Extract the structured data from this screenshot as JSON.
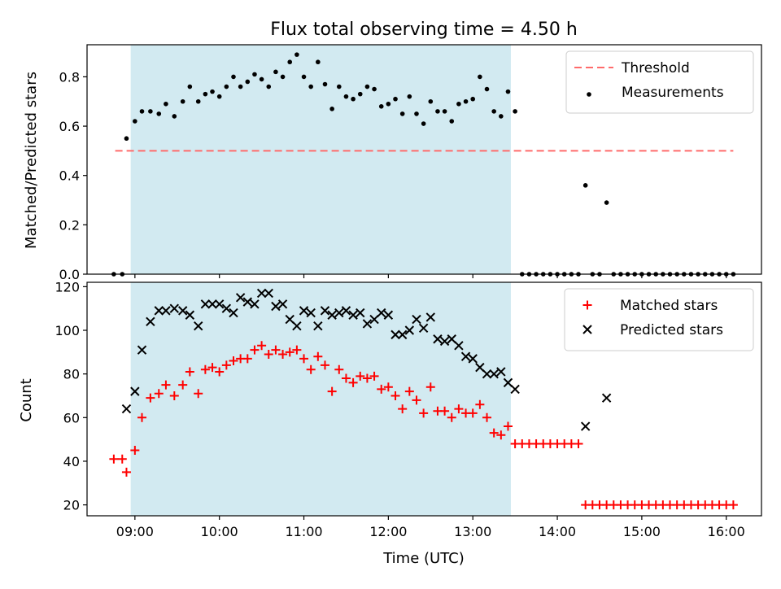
{
  "chart_data": [
    {
      "type": "scatter",
      "title": "Flux total observing time = 4.50 h",
      "xlabel": "",
      "ylabel": "Matched/Predicted stars",
      "xlim": [
        "08:26",
        "16:25"
      ],
      "ylim": [
        0,
        0.93
      ],
      "y_ticks": [
        "0.0",
        "0.2",
        "0.4",
        "0.6",
        "0.8"
      ],
      "shaded_region": {
        "from": "08:57",
        "to": "13:27",
        "color": "#add8e6"
      },
      "legend_position": "top-right",
      "threshold": {
        "name": "Threshold",
        "value": 0.5,
        "x_from": "08:46",
        "x_to": "16:05",
        "color": "#ff6b6b",
        "style": "dashed"
      },
      "series": [
        {
          "name": "Measurements",
          "color": "#000000",
          "marker": "dot",
          "points": [
            [
              "08:45",
              0.0
            ],
            [
              "08:51",
              0.0
            ],
            [
              "08:54",
              0.55
            ],
            [
              "09:00",
              0.62
            ],
            [
              "09:05",
              0.66
            ],
            [
              "09:11",
              0.66
            ],
            [
              "09:17",
              0.65
            ],
            [
              "09:22",
              0.69
            ],
            [
              "09:28",
              0.64
            ],
            [
              "09:34",
              0.7
            ],
            [
              "09:39",
              0.76
            ],
            [
              "09:45",
              0.7
            ],
            [
              "09:50",
              0.73
            ],
            [
              "09:55",
              0.74
            ],
            [
              "10:00",
              0.72
            ],
            [
              "10:05",
              0.76
            ],
            [
              "10:10",
              0.8
            ],
            [
              "10:15",
              0.76
            ],
            [
              "10:20",
              0.78
            ],
            [
              "10:25",
              0.81
            ],
            [
              "10:30",
              0.79
            ],
            [
              "10:35",
              0.76
            ],
            [
              "10:40",
              0.82
            ],
            [
              "10:45",
              0.8
            ],
            [
              "10:50",
              0.86
            ],
            [
              "10:55",
              0.89
            ],
            [
              "11:00",
              0.8
            ],
            [
              "11:05",
              0.76
            ],
            [
              "11:10",
              0.86
            ],
            [
              "11:15",
              0.77
            ],
            [
              "11:20",
              0.67
            ],
            [
              "11:25",
              0.76
            ],
            [
              "11:30",
              0.72
            ],
            [
              "11:35",
              0.71
            ],
            [
              "11:40",
              0.73
            ],
            [
              "11:45",
              0.76
            ],
            [
              "11:50",
              0.75
            ],
            [
              "11:55",
              0.68
            ],
            [
              "12:00",
              0.69
            ],
            [
              "12:05",
              0.71
            ],
            [
              "12:10",
              0.65
            ],
            [
              "12:15",
              0.72
            ],
            [
              "12:20",
              0.65
            ],
            [
              "12:25",
              0.61
            ],
            [
              "12:30",
              0.7
            ],
            [
              "12:35",
              0.66
            ],
            [
              "12:40",
              0.66
            ],
            [
              "12:45",
              0.62
            ],
            [
              "12:50",
              0.69
            ],
            [
              "12:55",
              0.7
            ],
            [
              "13:00",
              0.71
            ],
            [
              "13:05",
              0.8
            ],
            [
              "13:10",
              0.75
            ],
            [
              "13:15",
              0.66
            ],
            [
              "13:20",
              0.64
            ],
            [
              "13:25",
              0.74
            ],
            [
              "13:30",
              0.66
            ],
            [
              "13:35",
              0.0
            ],
            [
              "13:40",
              0.0
            ],
            [
              "13:45",
              0.0
            ],
            [
              "13:50",
              0.0
            ],
            [
              "13:55",
              0.0
            ],
            [
              "14:00",
              0.0
            ],
            [
              "14:05",
              0.0
            ],
            [
              "14:10",
              0.0
            ],
            [
              "14:15",
              0.0
            ],
            [
              "14:20",
              0.36
            ],
            [
              "14:25",
              0.0
            ],
            [
              "14:30",
              0.0
            ],
            [
              "14:35",
              0.29
            ],
            [
              "14:40",
              0.0
            ],
            [
              "14:45",
              0.0
            ],
            [
              "14:50",
              0.0
            ],
            [
              "14:55",
              0.0
            ],
            [
              "15:00",
              0.0
            ],
            [
              "15:05",
              0.0
            ],
            [
              "15:10",
              0.0
            ],
            [
              "15:15",
              0.0
            ],
            [
              "15:20",
              0.0
            ],
            [
              "15:25",
              0.0
            ],
            [
              "15:30",
              0.0
            ],
            [
              "15:35",
              0.0
            ],
            [
              "15:40",
              0.0
            ],
            [
              "15:45",
              0.0
            ],
            [
              "15:50",
              0.0
            ],
            [
              "15:55",
              0.0
            ],
            [
              "16:00",
              0.0
            ],
            [
              "16:05",
              0.0
            ]
          ]
        }
      ]
    },
    {
      "type": "scatter",
      "title": "",
      "xlabel": "Time (UTC)",
      "ylabel": "Count",
      "xlim": [
        "08:26",
        "16:25"
      ],
      "ylim": [
        15,
        122
      ],
      "x_ticks": [
        "09:00",
        "10:00",
        "11:00",
        "12:00",
        "13:00",
        "14:00",
        "15:00",
        "16:00"
      ],
      "y_ticks": [
        "20",
        "40",
        "60",
        "80",
        "100",
        "120"
      ],
      "shaded_region": {
        "from": "08:57",
        "to": "13:27",
        "color": "#add8e6"
      },
      "legend_position": "top-right",
      "series": [
        {
          "name": "Matched stars",
          "color": "#ff0000",
          "marker": "plus",
          "points": [
            [
              "08:45",
              41
            ],
            [
              "08:51",
              41
            ],
            [
              "08:54",
              35
            ],
            [
              "09:00",
              45
            ],
            [
              "09:05",
              60
            ],
            [
              "09:11",
              69
            ],
            [
              "09:17",
              71
            ],
            [
              "09:22",
              75
            ],
            [
              "09:28",
              70
            ],
            [
              "09:34",
              75
            ],
            [
              "09:39",
              81
            ],
            [
              "09:45",
              71
            ],
            [
              "09:50",
              82
            ],
            [
              "09:55",
              83
            ],
            [
              "10:00",
              81
            ],
            [
              "10:05",
              84
            ],
            [
              "10:10",
              86
            ],
            [
              "10:15",
              87
            ],
            [
              "10:20",
              87
            ],
            [
              "10:25",
              91
            ],
            [
              "10:30",
              93
            ],
            [
              "10:35",
              89
            ],
            [
              "10:40",
              91
            ],
            [
              "10:45",
              89
            ],
            [
              "10:50",
              90
            ],
            [
              "10:55",
              91
            ],
            [
              "11:00",
              87
            ],
            [
              "11:05",
              82
            ],
            [
              "11:10",
              88
            ],
            [
              "11:15",
              84
            ],
            [
              "11:20",
              72
            ],
            [
              "11:25",
              82
            ],
            [
              "11:30",
              78
            ],
            [
              "11:35",
              76
            ],
            [
              "11:40",
              79
            ],
            [
              "11:45",
              78
            ],
            [
              "11:50",
              79
            ],
            [
              "11:55",
              73
            ],
            [
              "12:00",
              74
            ],
            [
              "12:05",
              70
            ],
            [
              "12:10",
              64
            ],
            [
              "12:15",
              72
            ],
            [
              "12:20",
              68
            ],
            [
              "12:25",
              62
            ],
            [
              "12:30",
              74
            ],
            [
              "12:35",
              63
            ],
            [
              "12:40",
              63
            ],
            [
              "12:45",
              60
            ],
            [
              "12:50",
              64
            ],
            [
              "12:55",
              62
            ],
            [
              "13:00",
              62
            ],
            [
              "13:05",
              66
            ],
            [
              "13:10",
              60
            ],
            [
              "13:15",
              53
            ],
            [
              "13:20",
              52
            ],
            [
              "13:25",
              56
            ],
            [
              "13:30",
              48
            ],
            [
              "13:35",
              48
            ],
            [
              "13:40",
              48
            ],
            [
              "13:45",
              48
            ],
            [
              "13:50",
              48
            ],
            [
              "13:55",
              48
            ],
            [
              "14:00",
              48
            ],
            [
              "14:05",
              48
            ],
            [
              "14:10",
              48
            ],
            [
              "14:15",
              48
            ],
            [
              "14:20",
              20
            ],
            [
              "14:25",
              20
            ],
            [
              "14:30",
              20
            ],
            [
              "14:35",
              20
            ],
            [
              "14:40",
              20
            ],
            [
              "14:45",
              20
            ],
            [
              "14:50",
              20
            ],
            [
              "14:55",
              20
            ],
            [
              "15:00",
              20
            ],
            [
              "15:05",
              20
            ],
            [
              "15:10",
              20
            ],
            [
              "15:15",
              20
            ],
            [
              "15:20",
              20
            ],
            [
              "15:25",
              20
            ],
            [
              "15:30",
              20
            ],
            [
              "15:35",
              20
            ],
            [
              "15:40",
              20
            ],
            [
              "15:45",
              20
            ],
            [
              "15:50",
              20
            ],
            [
              "15:55",
              20
            ],
            [
              "16:00",
              20
            ],
            [
              "16:05",
              20
            ]
          ]
        },
        {
          "name": "Predicted stars",
          "color": "#000000",
          "marker": "x",
          "points": [
            [
              "08:54",
              64
            ],
            [
              "09:00",
              72
            ],
            [
              "09:05",
              91
            ],
            [
              "09:11",
              104
            ],
            [
              "09:17",
              109
            ],
            [
              "09:22",
              109
            ],
            [
              "09:28",
              110
            ],
            [
              "09:34",
              109
            ],
            [
              "09:39",
              107
            ],
            [
              "09:45",
              102
            ],
            [
              "09:50",
              112
            ],
            [
              "09:55",
              112
            ],
            [
              "10:00",
              112
            ],
            [
              "10:05",
              110
            ],
            [
              "10:10",
              108
            ],
            [
              "10:15",
              115
            ],
            [
              "10:20",
              113
            ],
            [
              "10:25",
              112
            ],
            [
              "10:30",
              117
            ],
            [
              "10:35",
              117
            ],
            [
              "10:40",
              111
            ],
            [
              "10:45",
              112
            ],
            [
              "10:50",
              105
            ],
            [
              "10:55",
              102
            ],
            [
              "11:00",
              109
            ],
            [
              "11:05",
              108
            ],
            [
              "11:10",
              102
            ],
            [
              "11:15",
              109
            ],
            [
              "11:20",
              107
            ],
            [
              "11:25",
              108
            ],
            [
              "11:30",
              109
            ],
            [
              "11:35",
              107
            ],
            [
              "11:40",
              108
            ],
            [
              "11:45",
              103
            ],
            [
              "11:50",
              105
            ],
            [
              "11:55",
              108
            ],
            [
              "12:00",
              107
            ],
            [
              "12:05",
              98
            ],
            [
              "12:10",
              98
            ],
            [
              "12:15",
              100
            ],
            [
              "12:20",
              105
            ],
            [
              "12:25",
              101
            ],
            [
              "12:30",
              106
            ],
            [
              "12:35",
              96
            ],
            [
              "12:40",
              95
            ],
            [
              "12:45",
              96
            ],
            [
              "12:50",
              93
            ],
            [
              "12:55",
              88
            ],
            [
              "13:00",
              87
            ],
            [
              "13:05",
              83
            ],
            [
              "13:10",
              80
            ],
            [
              "13:15",
              80
            ],
            [
              "13:20",
              81
            ],
            [
              "13:25",
              76
            ],
            [
              "13:30",
              73
            ],
            [
              "14:20",
              56
            ],
            [
              "14:35",
              69
            ]
          ]
        }
      ]
    }
  ]
}
